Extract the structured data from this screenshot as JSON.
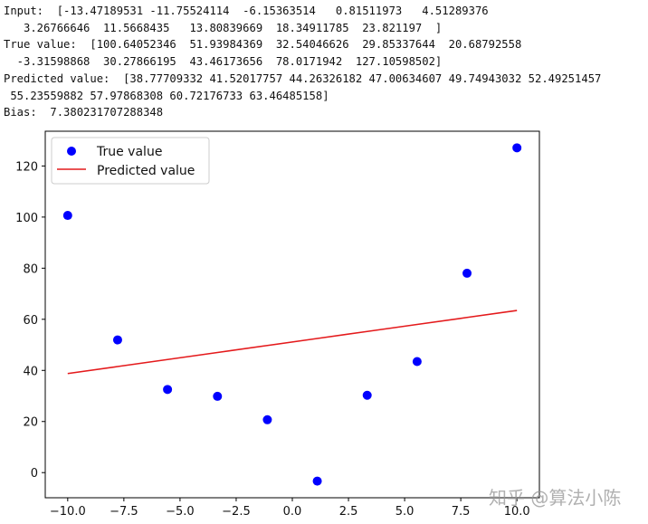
{
  "output": {
    "lines": [
      "Input:  [-13.47189531 -11.75524114  -6.15363514   0.81511973   4.51289376",
      "   3.26766646  11.5668435   13.80839669  18.34911785  23.821197  ]",
      "True value:  [100.64052346  51.93984369  32.54046626  29.85337644  20.68792558",
      "  -3.31598868  30.27866195  43.46173656  78.0171942  127.10598502]",
      "Predicted value:  [38.77709332 41.52017757 44.26326182 47.00634607 49.74943032 52.49251457",
      " 55.23559882 57.97868308 60.72176733 63.46485158]",
      "Bias:  7.380231707288348"
    ]
  },
  "watermark": "知乎 @算法小陈",
  "chart_data": {
    "type": "scatter+line",
    "title": "",
    "xlabel": "",
    "ylabel": "",
    "xlim": [
      -11,
      11
    ],
    "ylim": [
      -9.84,
      133.6
    ],
    "grid": false,
    "legend_placement": "upper-left",
    "x_ticks": [
      -10.0,
      -7.5,
      -5.0,
      -2.5,
      0.0,
      2.5,
      5.0,
      7.5,
      10.0
    ],
    "x_tick_labels": [
      "−10.0",
      "−7.5",
      "−5.0",
      "−2.5",
      "0.0",
      "2.5",
      "5.0",
      "7.5",
      "10.0"
    ],
    "y_ticks": [
      0,
      20,
      40,
      60,
      80,
      100,
      120
    ],
    "y_tick_labels": [
      "0",
      "20",
      "40",
      "60",
      "80",
      "100",
      "120"
    ],
    "x": [
      -10.0,
      -7.778,
      -5.556,
      -3.333,
      -1.111,
      1.111,
      3.333,
      5.556,
      7.778,
      10.0
    ],
    "series": [
      {
        "name": "True value",
        "kind": "scatter",
        "color": "#0000ff",
        "values": [
          100.64052346,
          51.93984369,
          32.54046626,
          29.85337644,
          20.68792558,
          -3.31598868,
          30.27866195,
          43.46173656,
          78.0171942,
          127.10598502
        ]
      },
      {
        "name": "Predicted value",
        "kind": "line",
        "color": "#e41a1c",
        "values": [
          38.77709332,
          41.52017757,
          44.26326182,
          47.00634607,
          49.74943032,
          52.49251457,
          55.23559882,
          57.97868308,
          60.72176733,
          63.46485158
        ]
      }
    ]
  }
}
